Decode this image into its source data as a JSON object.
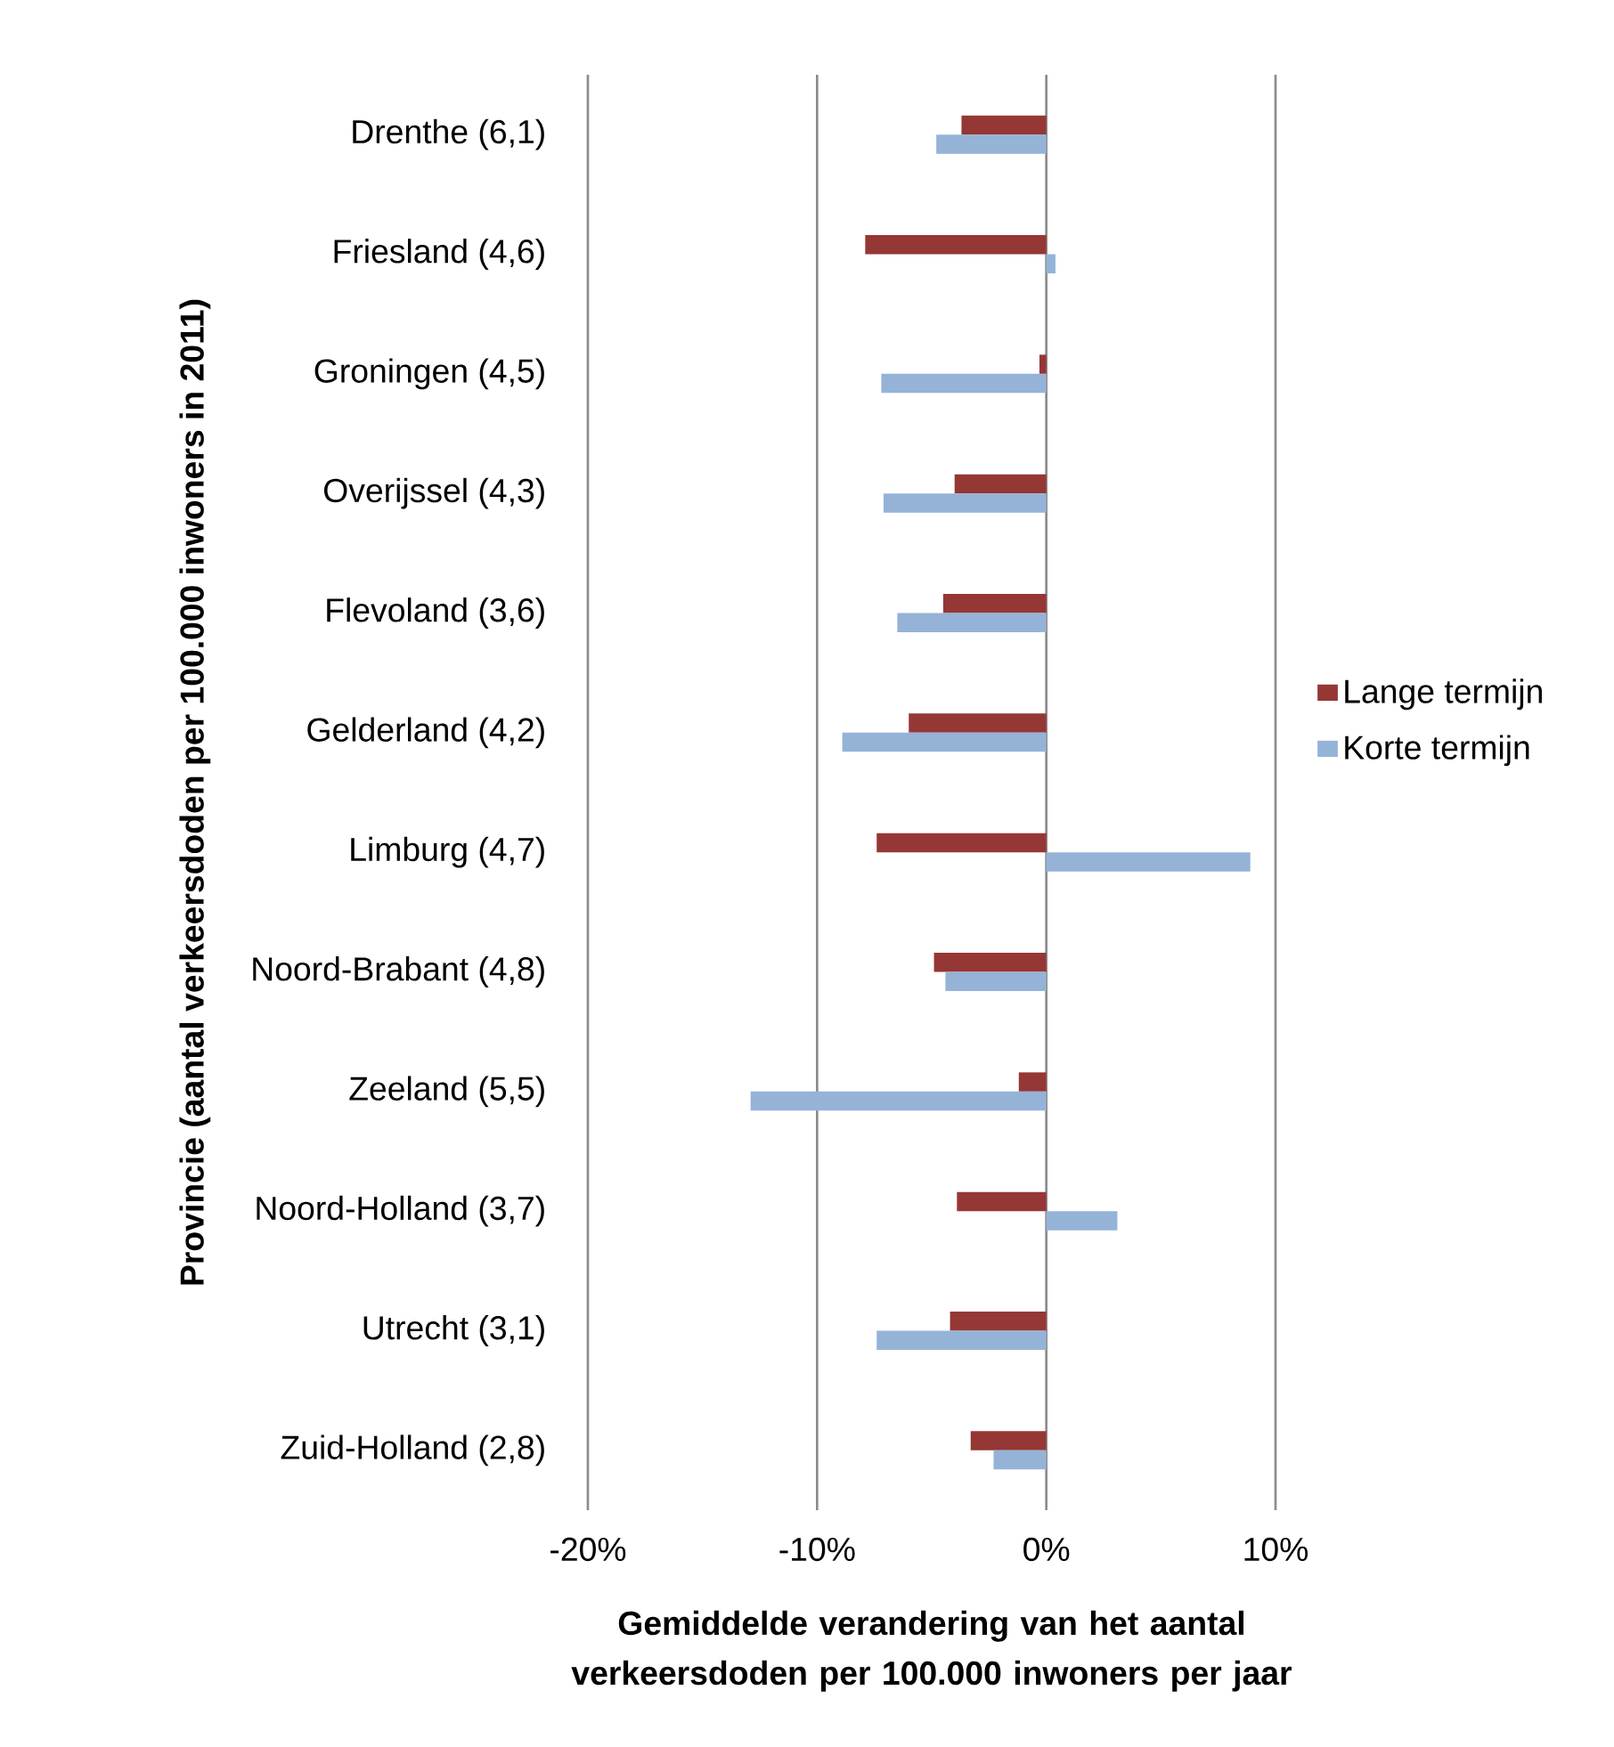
{
  "chart_data": {
    "type": "bar",
    "orientation": "horizontal",
    "xlabel": "Gemiddelde verandering van het aantal verkeersdoden per 100.000 inwoners per jaar",
    "ylabel": "Provincie (aantal verkeersdoden per 100.000 inwoners in 2011)",
    "categories": [
      "Drenthe (6,1)",
      "Friesland (4,6)",
      "Groningen (4,5)",
      "Overijssel (4,3)",
      "Flevoland (3,6)",
      "Gelderland (4,2)",
      "Limburg (4,7)",
      "Noord-Brabant (4,8)",
      "Zeeland (5,5)",
      "Noord-Holland (3,7)",
      "Utrecht (3,1)",
      "Zuid-Holland (2,8)"
    ],
    "series": [
      {
        "name": "Lange termijn",
        "color": "#953735",
        "values": [
          -3.7,
          -7.9,
          -0.3,
          -4.0,
          -4.5,
          -6.0,
          -7.4,
          -4.9,
          -1.2,
          -3.9,
          -4.2,
          -3.3
        ]
      },
      {
        "name": "Korte termijn",
        "color": "#95b3d7",
        "values": [
          -4.8,
          0.4,
          -7.2,
          -7.1,
          -6.5,
          -8.9,
          8.9,
          -4.4,
          -12.9,
          3.1,
          -7.4,
          -2.3
        ]
      }
    ],
    "xlim": [
      -20,
      10
    ],
    "xticks": [
      {
        "value": -20,
        "label": "-20%"
      },
      {
        "value": -10,
        "label": "-10%"
      },
      {
        "value": 0,
        "label": "0%"
      },
      {
        "value": 10,
        "label": "10%"
      }
    ],
    "grid": "x",
    "legend": "right"
  }
}
